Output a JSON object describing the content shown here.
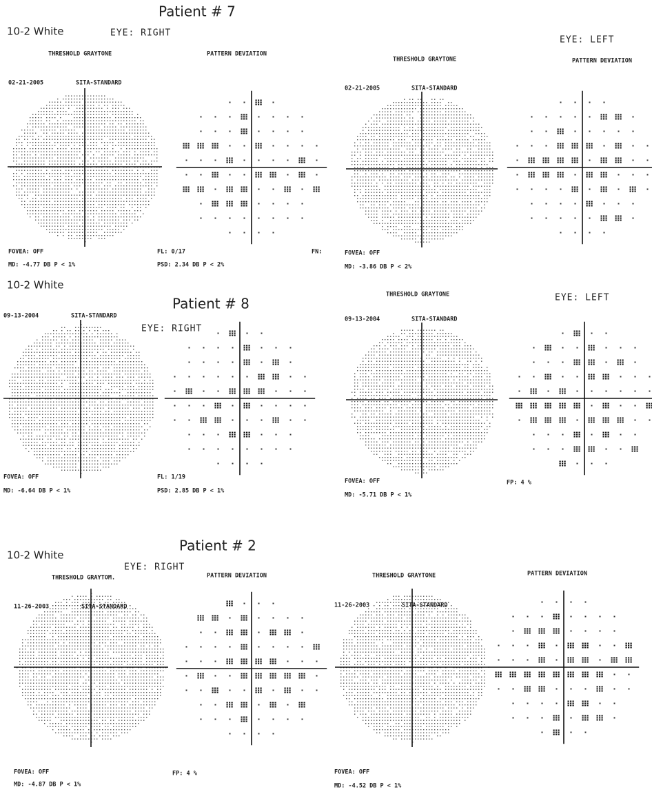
{
  "row1": {
    "patient": "Patient # 7",
    "test": "10-2 White",
    "eye_right": "EYE: RIGHT",
    "eye_left": "EYE: LEFT",
    "right_graytone": "THRESHOLD GRAYTONE",
    "right_pattern": "PATTERN DEVIATION",
    "left_graytone": "THRESHOLD GRAYTONE",
    "left_pattern": "PATTERN DEVIATION",
    "right_date": "02-21-2005",
    "right_strategy": "SITA-STANDARD",
    "left_date": "02-21-2005",
    "left_strategy": "SITA-STANDARD",
    "right_fovea": "FOVEA: OFF",
    "right_md": "MD: -4.77 DB P < 1%",
    "right_fl": "FL: 0/17",
    "right_psd": "PSD: 2.34 DB P < 2%",
    "right_fn": "FN:",
    "left_fovea": "FOVEA: OFF",
    "left_md": "MD: -3.86 DB P < 2%"
  },
  "row2": {
    "patient": "Patient # 8",
    "test": "10-2 White",
    "eye_right": "EYE: RIGHT",
    "eye_left": "EYE: LEFT",
    "left_graytone": "THRESHOLD GRAYTONE",
    "right_date": "09-13-2004",
    "right_strategy": "SITA-STANDARD",
    "left_date": "09-13-2004",
    "left_strategy": "SITA-STANDARD",
    "right_fovea": "FOVEA: OFF",
    "right_md": "MD: -6.64 DB P < 1%",
    "right_fl": "FL: 1/19",
    "right_psd": "PSD: 2.85 DB P < 1%",
    "left_fovea": "FOVEA: OFF",
    "left_md": "MD: -5.71 DB P < 1%",
    "left_fp": "FP: 4 %"
  },
  "row3": {
    "patient": "Patient # 2",
    "test": "10-2 White",
    "eye_right": "EYE: RIGHT",
    "right_graytone": "THRESHOLD GRAYTOM.",
    "right_pattern": "PATTERN DEVIATION",
    "left_graytone": "THRESHOLD GRAYTONE",
    "left_pattern": "PATTERN DEVIATION",
    "right_date": "11-26-2003",
    "right_strategy": "SITA-STANDARD",
    "left_date": "11-26-2003",
    "left_strategy": "SITA-STANDARD",
    "right_fovea": "FOVEA: OFF",
    "right_md": "MD: -4.87 DB P < 1%",
    "right_fp": "FP: 4 %",
    "left_fovea": "FOVEA: OFF",
    "left_md": "MD: -4.52 DB P < 1%"
  }
}
